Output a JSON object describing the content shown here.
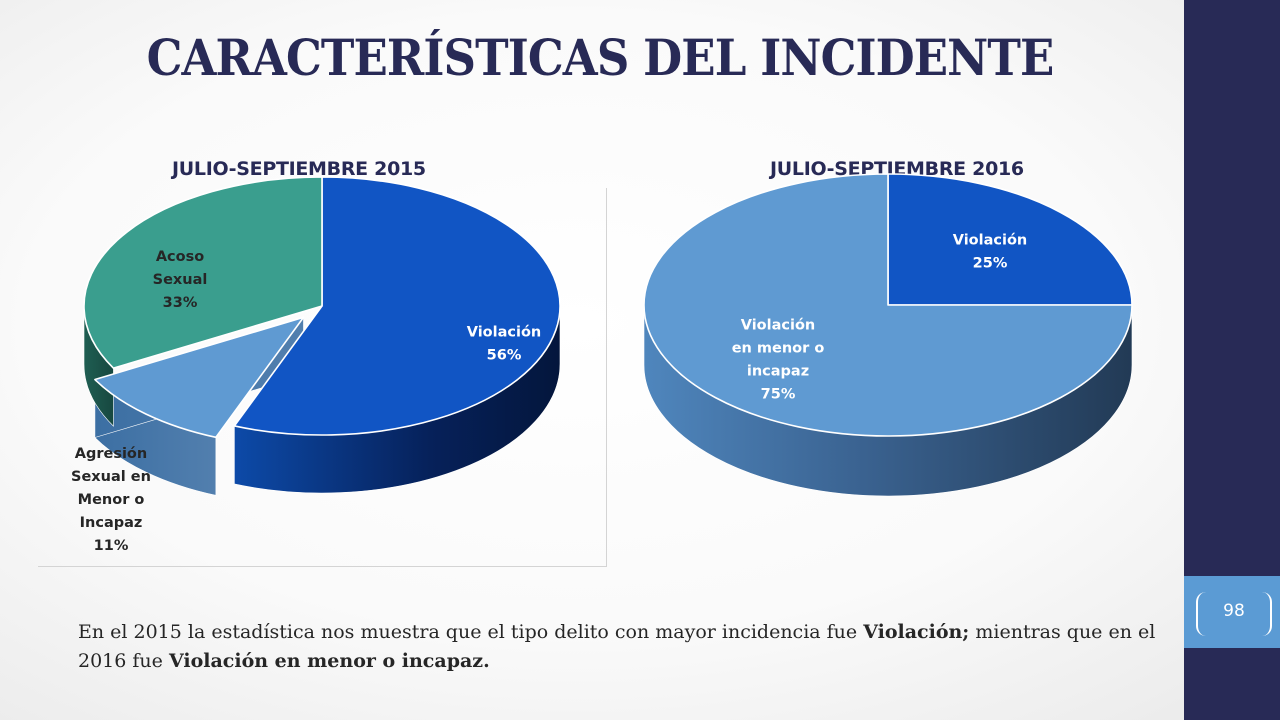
{
  "slide": {
    "title": "CARACTERÍSTICAS DEL INCIDENTE",
    "page_number": "98"
  },
  "caption": {
    "part1": "En el 2015 la estadística nos muestra que el tipo delito con mayor incidencia fue ",
    "bold1": "Violación;",
    "part2": " mientras que en el  2016 fue ",
    "bold2": "Violación en menor o incapaz."
  },
  "colors": {
    "sidebar": "#282a56",
    "page_tab": "#5b9bd4",
    "title": "#282a56",
    "violacion_blue": "#1155c4",
    "menor_light_blue": "#5f9ad2",
    "acoso_teal": "#3a9e8e"
  },
  "chart_data": [
    {
      "type": "pie",
      "title": "JULIO-SEPTIEMBRE 2015",
      "categories": [
        "Violación",
        "Agresión Sexual en Menor o Incapaz",
        "Acoso Sexual"
      ],
      "values": [
        56,
        11,
        33
      ],
      "unit": "%",
      "labels": [
        {
          "lines": [
            "Violación",
            "56%"
          ],
          "color": "#ffffff"
        },
        {
          "lines": [
            "Agresión",
            "Sexual en",
            "Menor o",
            "Incapaz",
            "11%"
          ],
          "color": "#262626"
        },
        {
          "lines": [
            "Acoso",
            "Sexual",
            "33%"
          ],
          "color": "#262626"
        }
      ],
      "colors": [
        "#1155c4",
        "#5f9ad2",
        "#3a9e8e"
      ],
      "exploded": [
        "Agresión Sexual en Menor o Incapaz"
      ],
      "style": "3d"
    },
    {
      "type": "pie",
      "title": "JULIO-SEPTIEMBRE 2016",
      "categories": [
        "Violación",
        "Violación en menor o incapaz"
      ],
      "values": [
        25,
        75
      ],
      "unit": "%",
      "labels": [
        {
          "lines": [
            "Violación",
            "25%"
          ],
          "color": "#ffffff"
        },
        {
          "lines": [
            "Violación",
            "en menor o",
            "incapaz",
            "75%"
          ],
          "color": "#ffffff"
        }
      ],
      "colors": [
        "#1155c4",
        "#5f9ad2"
      ],
      "style": "3d"
    }
  ]
}
